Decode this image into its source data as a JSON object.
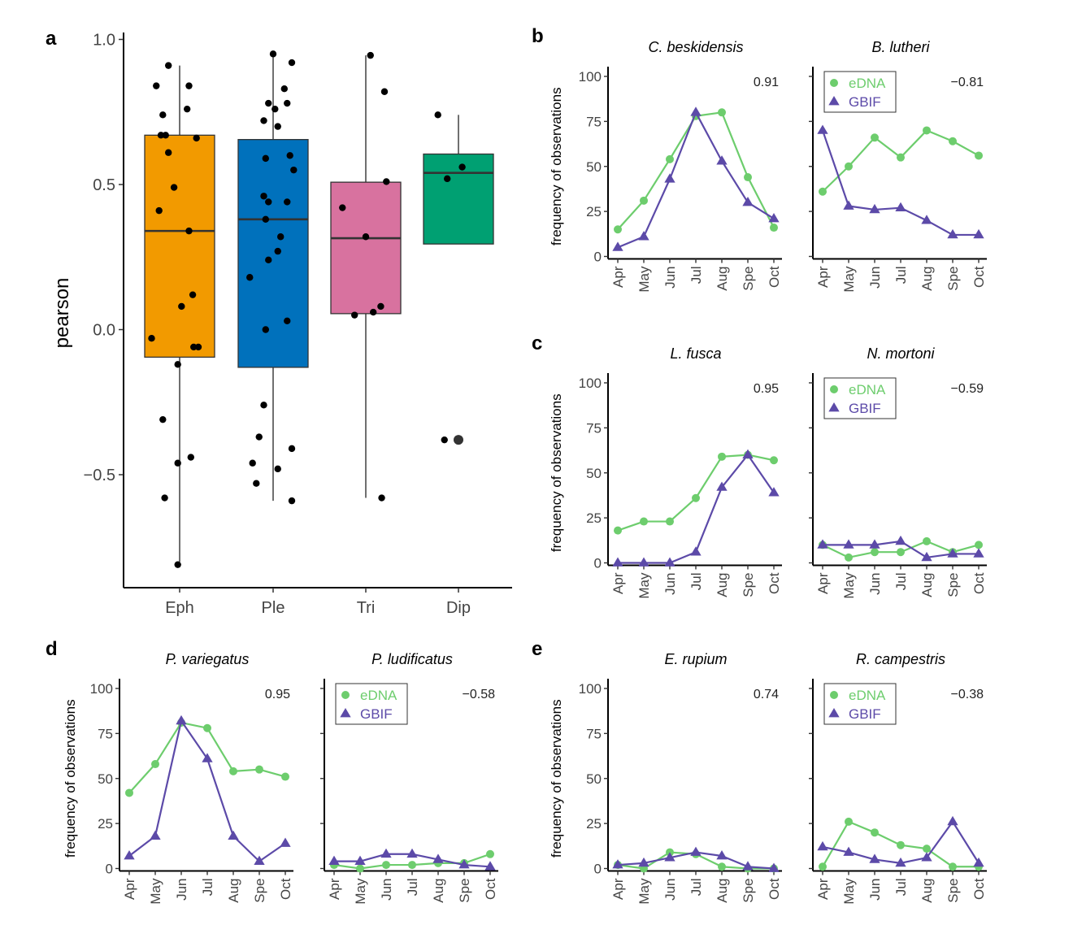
{
  "colors": {
    "eDNA": "#6dcd6d",
    "GBIF": "#5c4aa8",
    "Eph": "#f29a00",
    "Ple": "#0071bc",
    "Tri": "#d8729f",
    "Dip": "#00a072"
  },
  "chart_data": [
    {
      "panel": "a",
      "type": "boxplot",
      "ylabel": "pearson",
      "ylim": [
        -0.9,
        1.0
      ],
      "yticks": [
        -0.5,
        0.0,
        0.5,
        1.0
      ],
      "ytick_labels": [
        "−0.5",
        "0.0",
        "0.5",
        "1.0"
      ],
      "categories": [
        "Eph",
        "Ple",
        "Tri",
        "Dip"
      ],
      "boxes": [
        {
          "name": "Eph",
          "q1": -0.095,
          "median": 0.34,
          "q3": 0.67,
          "whisker_low": -0.8,
          "whisker_high": 0.91,
          "outliers": [],
          "points": [
            [
              -0.12,
              0.91
            ],
            [
              -0.25,
              0.84
            ],
            [
              0.1,
              0.84
            ],
            [
              -0.18,
              0.74
            ],
            [
              0.08,
              0.76
            ],
            [
              -0.2,
              0.67
            ],
            [
              -0.15,
              0.67
            ],
            [
              0.18,
              0.66
            ],
            [
              -0.12,
              0.61
            ],
            [
              -0.06,
              0.49
            ],
            [
              -0.22,
              0.41
            ],
            [
              0.1,
              0.34
            ],
            [
              0.14,
              0.12
            ],
            [
              0.02,
              0.08
            ],
            [
              -0.3,
              -0.03
            ],
            [
              0.15,
              -0.06
            ],
            [
              0.2,
              -0.06
            ],
            [
              -0.02,
              -0.12
            ],
            [
              -0.18,
              -0.31
            ],
            [
              0.12,
              -0.44
            ],
            [
              -0.02,
              -0.46
            ],
            [
              -0.16,
              -0.58
            ],
            [
              -0.02,
              -0.81
            ]
          ]
        },
        {
          "name": "Ple",
          "q1": -0.13,
          "median": 0.38,
          "q3": 0.655,
          "whisker_low": -0.59,
          "whisker_high": 0.95,
          "outliers": [],
          "points": [
            [
              0.0,
              0.95
            ],
            [
              0.2,
              0.92
            ],
            [
              0.12,
              0.83
            ],
            [
              -0.05,
              0.78
            ],
            [
              0.15,
              0.78
            ],
            [
              0.02,
              0.76
            ],
            [
              -0.1,
              0.72
            ],
            [
              0.05,
              0.7
            ],
            [
              0.18,
              0.6
            ],
            [
              -0.08,
              0.59
            ],
            [
              0.22,
              0.55
            ],
            [
              -0.1,
              0.46
            ],
            [
              -0.05,
              0.44
            ],
            [
              0.15,
              0.44
            ],
            [
              -0.08,
              0.38
            ],
            [
              0.08,
              0.32
            ],
            [
              0.05,
              0.27
            ],
            [
              -0.05,
              0.24
            ],
            [
              -0.25,
              0.18
            ],
            [
              0.15,
              0.03
            ],
            [
              -0.08,
              0.0
            ],
            [
              -0.1,
              -0.26
            ],
            [
              -0.15,
              -0.37
            ],
            [
              0.2,
              -0.41
            ],
            [
              -0.22,
              -0.46
            ],
            [
              0.05,
              -0.48
            ],
            [
              -0.18,
              -0.53
            ],
            [
              0.2,
              -0.59
            ]
          ]
        },
        {
          "name": "Tri",
          "q1": 0.055,
          "median": 0.315,
          "q3": 0.508,
          "whisker_low": -0.58,
          "whisker_high": 0.945,
          "outliers": [],
          "points": [
            [
              0.05,
              0.945
            ],
            [
              0.2,
              0.82
            ],
            [
              0.22,
              0.51
            ],
            [
              -0.25,
              0.42
            ],
            [
              0.0,
              0.32
            ],
            [
              0.16,
              0.08
            ],
            [
              0.08,
              0.06
            ],
            [
              -0.12,
              0.05
            ],
            [
              0.17,
              -0.58
            ]
          ]
        },
        {
          "name": "Dip",
          "q1": 0.295,
          "median": 0.54,
          "q3": 0.605,
          "whisker_low": 0.295,
          "whisker_high": 0.74,
          "outliers": [
            -0.38
          ],
          "points": [
            [
              -0.22,
              0.74
            ],
            [
              0.04,
              0.56
            ],
            [
              -0.12,
              0.52
            ],
            [
              -0.15,
              -0.38
            ]
          ]
        }
      ],
      "xlabels": [
        "Eph",
        "Ple",
        "Tri",
        "Dip"
      ]
    },
    {
      "panel": "b",
      "type": "line",
      "ylabel": "frequency of observations",
      "ylim": [
        0,
        100
      ],
      "yticks": [
        0,
        25,
        50,
        75,
        100
      ],
      "ytick_labels": [
        "0",
        "25",
        "50",
        "75",
        "100"
      ],
      "x": [
        "Apr",
        "May",
        "Jun",
        "Jul",
        "Aug",
        "Spe",
        "Oct"
      ],
      "legend_labels": [
        "eDNA",
        "GBIF"
      ],
      "facets": [
        {
          "title": "C. beskidensis",
          "corr": "0.91",
          "legend": false,
          "series": [
            {
              "name": "eDNA",
              "values": [
                15,
                31,
                54,
                78,
                80,
                44,
                16
              ]
            },
            {
              "name": "GBIF",
              "values": [
                5,
                11,
                43,
                80,
                53,
                30,
                21
              ]
            }
          ]
        },
        {
          "title": "B. lutheri",
          "corr": "−0.81",
          "legend": true,
          "series": [
            {
              "name": "eDNA",
              "values": [
                36,
                50,
                66,
                55,
                70,
                64,
                56
              ]
            },
            {
              "name": "GBIF",
              "values": [
                70,
                28,
                26,
                27,
                20,
                12,
                12
              ]
            }
          ]
        }
      ]
    },
    {
      "panel": "c",
      "type": "line",
      "ylabel": "frequency of observations",
      "ylim": [
        0,
        100
      ],
      "yticks": [
        0,
        25,
        50,
        75,
        100
      ],
      "ytick_labels": [
        "0",
        "25",
        "50",
        "75",
        "100"
      ],
      "x": [
        "Apr",
        "May",
        "Jun",
        "Jul",
        "Aug",
        "Spe",
        "Oct"
      ],
      "legend_labels": [
        "eDNA",
        "GBIF"
      ],
      "facets": [
        {
          "title": "L. fusca",
          "corr": "0.95",
          "legend": false,
          "series": [
            {
              "name": "eDNA",
              "values": [
                18,
                23,
                23,
                36,
                59,
                60,
                57
              ]
            },
            {
              "name": "GBIF",
              "values": [
                0,
                0,
                0,
                6,
                42,
                60,
                39
              ]
            }
          ]
        },
        {
          "title": "N. mortoni",
          "corr": "−0.59",
          "legend": true,
          "series": [
            {
              "name": "eDNA",
              "values": [
                10,
                3,
                6,
                6,
                12,
                6,
                10
              ]
            },
            {
              "name": "GBIF",
              "values": [
                10,
                10,
                10,
                12,
                3,
                5,
                5
              ]
            }
          ]
        }
      ]
    },
    {
      "panel": "d",
      "type": "line",
      "ylabel": "frequency of observations",
      "ylim": [
        0,
        100
      ],
      "yticks": [
        0,
        25,
        50,
        75,
        100
      ],
      "ytick_labels": [
        "0",
        "25",
        "50",
        "75",
        "100"
      ],
      "x": [
        "Apr",
        "May",
        "Jun",
        "Jul",
        "Aug",
        "Spe",
        "Oct"
      ],
      "legend_labels": [
        "eDNA",
        "GBIF"
      ],
      "facets": [
        {
          "title": "P. variegatus",
          "corr": "0.95",
          "legend": false,
          "series": [
            {
              "name": "eDNA",
              "values": [
                42,
                58,
                81,
                78,
                54,
                55,
                51
              ]
            },
            {
              "name": "GBIF",
              "values": [
                7,
                18,
                82,
                61,
                18,
                4,
                14
              ]
            }
          ]
        },
        {
          "title": "P. ludificatus",
          "corr": "−0.58",
          "legend": true,
          "series": [
            {
              "name": "eDNA",
              "values": [
                2,
                0,
                2,
                2,
                3,
                3,
                8
              ]
            },
            {
              "name": "GBIF",
              "values": [
                4,
                4,
                8,
                8,
                5,
                2,
                1
              ]
            }
          ]
        }
      ]
    },
    {
      "panel": "e",
      "type": "line",
      "ylabel": "frequency of observations",
      "ylim": [
        0,
        100
      ],
      "yticks": [
        0,
        25,
        50,
        75,
        100
      ],
      "ytick_labels": [
        "0",
        "25",
        "50",
        "75",
        "100"
      ],
      "x": [
        "Apr",
        "May",
        "Jun",
        "Jul",
        "Aug",
        "Spe",
        "Oct"
      ],
      "legend_labels": [
        "eDNA",
        "GBIF"
      ],
      "facets": [
        {
          "title": "E. rupium",
          "corr": "0.74",
          "legend": false,
          "series": [
            {
              "name": "eDNA",
              "values": [
                2,
                0,
                9,
                8,
                1,
                0,
                0
              ]
            },
            {
              "name": "GBIF",
              "values": [
                2,
                3,
                6,
                9,
                7,
                1,
                0
              ]
            }
          ]
        },
        {
          "title": "R. campestris",
          "corr": "−0.38",
          "legend": true,
          "series": [
            {
              "name": "eDNA",
              "values": [
                1,
                26,
                20,
                13,
                11,
                1,
                1
              ]
            },
            {
              "name": "GBIF",
              "values": [
                12,
                9,
                5,
                3,
                6,
                26,
                3
              ]
            }
          ]
        }
      ]
    }
  ]
}
